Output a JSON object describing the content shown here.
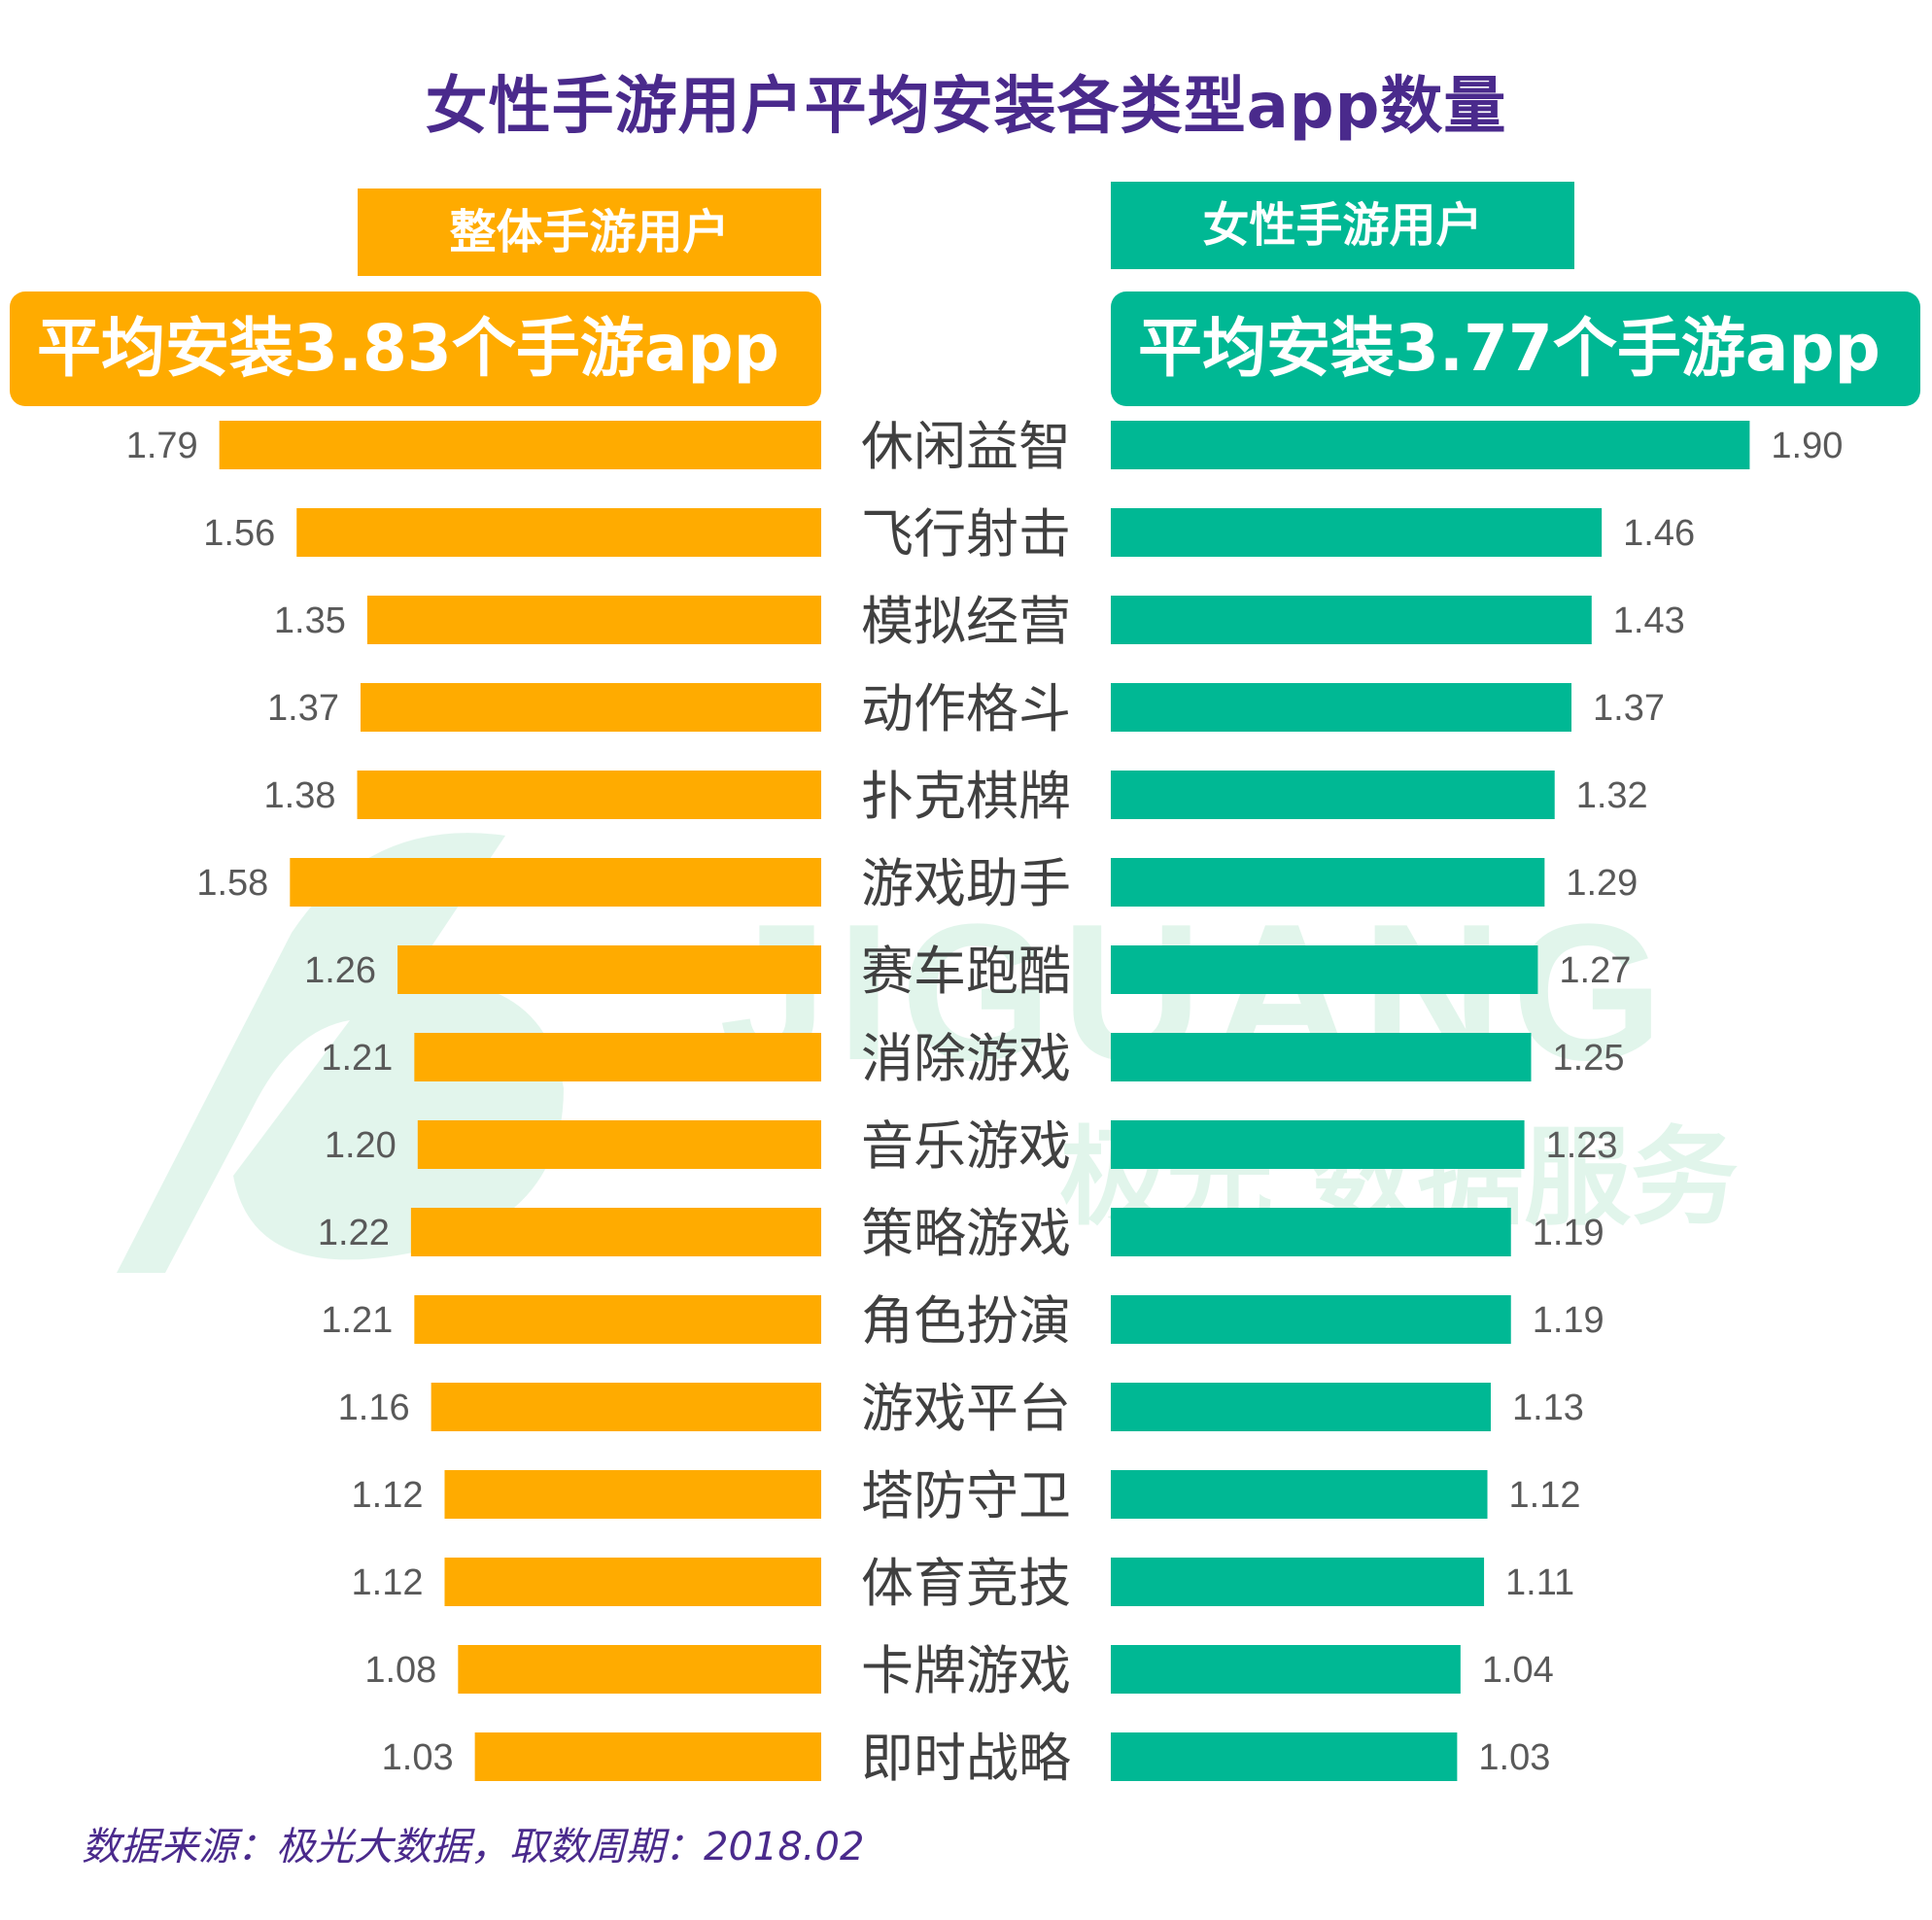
{
  "title": "女性手游用户平均安装各类型app数量",
  "left_panel": {
    "label": "整体手游用户",
    "average": "平均安装3.83个手游app",
    "color": "#ffab00"
  },
  "right_panel": {
    "label": "女性手游用户",
    "average": "平均安装3.77个手游app",
    "color": "#00b894"
  },
  "watermark": {
    "brand": "JIGUANG",
    "text": "极光 数据服务"
  },
  "source": "数据来源：极光大数据，取数周期：2018.02",
  "chart_data": {
    "type": "bar",
    "orientation": "horizontal-butterfly",
    "categories": [
      "休闲益智",
      "飞行射击",
      "模拟经营",
      "动作格斗",
      "扑克棋牌",
      "游戏助手",
      "赛车跑酷",
      "消除游戏",
      "音乐游戏",
      "策略游戏",
      "角色扮演",
      "游戏平台",
      "塔防守卫",
      "体育竞技",
      "卡牌游戏",
      "即时战略"
    ],
    "series": [
      {
        "name": "整体手游用户",
        "values": [
          1.79,
          1.56,
          1.35,
          1.37,
          1.38,
          1.58,
          1.26,
          1.21,
          1.2,
          1.22,
          1.21,
          1.16,
          1.12,
          1.12,
          1.08,
          1.03
        ],
        "labels": [
          "1.79",
          "1.56",
          "1.35",
          "1.37",
          "1.38",
          "1.58",
          "1.26",
          "1.21",
          "1.20",
          "1.22",
          "1.21",
          "1.16",
          "1.12",
          "1.12",
          "1.08",
          "1.03"
        ],
        "color": "#ffab00"
      },
      {
        "name": "女性手游用户",
        "values": [
          1.9,
          1.46,
          1.43,
          1.37,
          1.32,
          1.29,
          1.27,
          1.25,
          1.23,
          1.19,
          1.19,
          1.13,
          1.12,
          1.11,
          1.04,
          1.03
        ],
        "labels": [
          "1.90",
          "1.46",
          "1.43",
          "1.37",
          "1.32",
          "1.29",
          "1.27",
          "1.25",
          "1.23",
          "1.19",
          "1.19",
          "1.13",
          "1.12",
          "1.11",
          "1.04",
          "1.03"
        ],
        "color": "#00b894"
      }
    ]
  }
}
